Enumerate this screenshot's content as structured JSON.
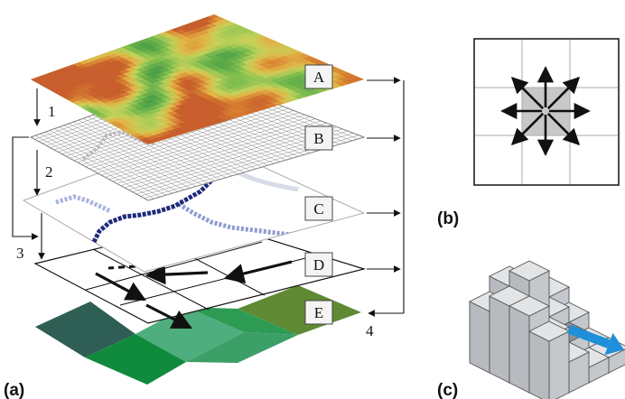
{
  "layers": [
    {
      "label": "A",
      "content": "elevation-heatmap"
    },
    {
      "label": "B",
      "content": "raster-grid-with-faint-stream"
    },
    {
      "label": "C",
      "content": "derived-stream-network"
    },
    {
      "label": "D",
      "content": "flow-direction-arrows"
    },
    {
      "label": "E",
      "content": "colored-classification-cells"
    }
  ],
  "steps": [
    "1",
    "2",
    "3",
    "4"
  ],
  "panels": {
    "a": "(a)",
    "b": "(b)",
    "c": "(c)"
  },
  "colors": {
    "stream_dark": "#1d2a7a",
    "stream_light": "#8e9ad0",
    "cell_dark_teal": "#2f5e55",
    "cell_green": "#108a3d",
    "cell_light_green": "#4fae7d",
    "cell_olive": "#5f8a33",
    "center_cell_gray": "#c8c8c8",
    "flow_arrow_blue": "#1e8fd8",
    "block_face": "#d5d8da"
  }
}
